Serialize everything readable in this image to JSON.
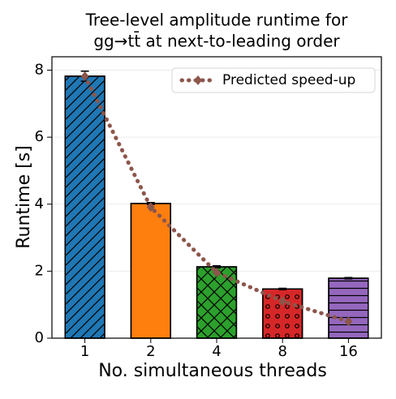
{
  "chart_data": {
    "type": "bar",
    "title": [
      "Tree-level amplitude runtime for",
      "gg→tt̄ at next-to-leading order"
    ],
    "xlabel": "No. simultaneous threads",
    "ylabel": "Runtime [s]",
    "categories": [
      "1",
      "2",
      "4",
      "8",
      "16"
    ],
    "series": [
      {
        "values": [
          7.82,
          4.02,
          2.13,
          1.47,
          1.79
        ],
        "errors": [
          0.15,
          0.03,
          0.03,
          0.02,
          0.02
        ],
        "colors": [
          "#1f77b4",
          "#ff7f0e",
          "#2ca02c",
          "#d62728",
          "#9467bd"
        ],
        "hatches": [
          "/",
          "\\",
          "x",
          "o",
          "-"
        ]
      },
      {
        "name": "Predicted speed-up",
        "type": "line",
        "color": "#8c564b",
        "values": [
          7.82,
          3.91,
          1.96,
          1.1,
          0.5
        ]
      }
    ],
    "ylim": [
      0,
      8.4
    ],
    "yticks": [
      0,
      2,
      4,
      6,
      8
    ],
    "grid": true,
    "legend": "upper right"
  }
}
